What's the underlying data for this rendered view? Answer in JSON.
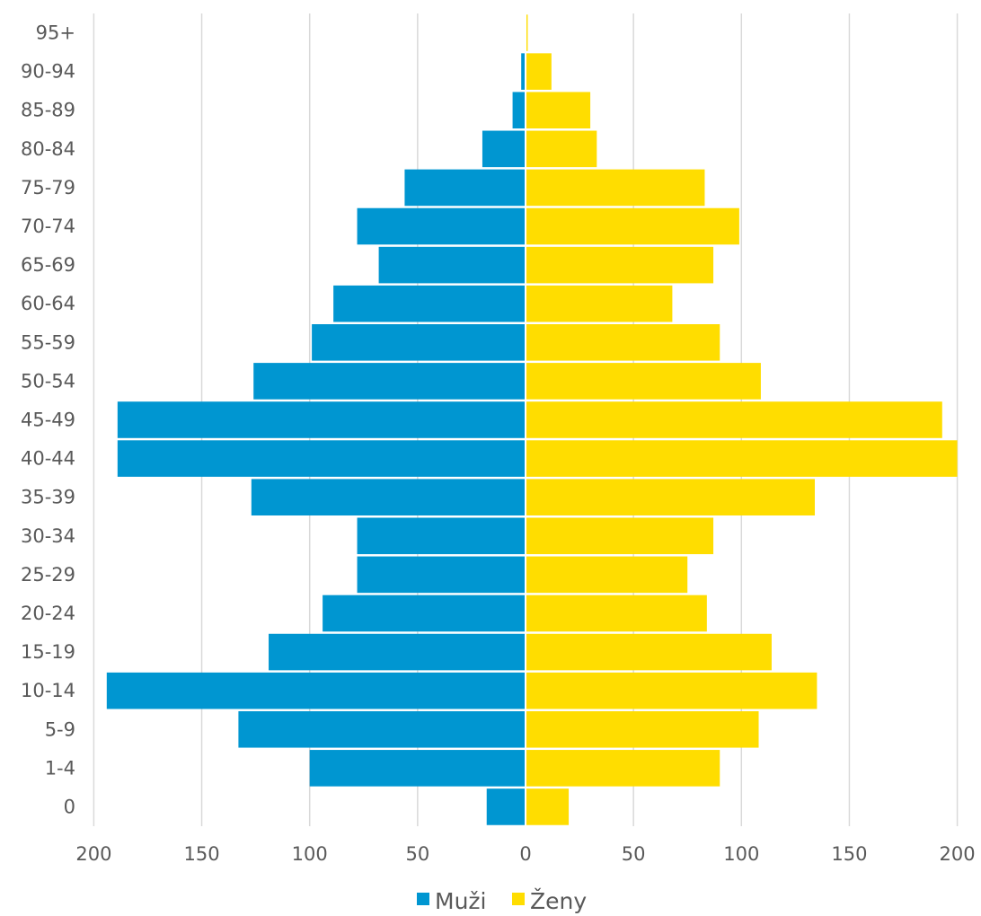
{
  "chart_data": {
    "type": "bar",
    "orientation": "horizontal-population-pyramid",
    "categories": [
      "95+",
      "90-94",
      "85-89",
      "80-84",
      "75-79",
      "70-74",
      "65-69",
      "60-64",
      "55-59",
      "50-54",
      "45-49",
      "40-44",
      "35-39",
      "30-34",
      "25-29",
      "20-24",
      "15-19",
      "10-14",
      "5-9",
      "1-4",
      "0"
    ],
    "series": [
      {
        "name": "Muži",
        "color": "#0096D1",
        "side": "left",
        "values": [
          0,
          2,
          6,
          20,
          56,
          78,
          68,
          89,
          99,
          126,
          189,
          189,
          127,
          78,
          78,
          94,
          119,
          194,
          133,
          100,
          18
        ]
      },
      {
        "name": "Ženy",
        "color": "#FFDD00",
        "side": "right",
        "values": [
          1,
          12,
          30,
          33,
          83,
          99,
          87,
          68,
          90,
          109,
          193,
          200,
          134,
          87,
          75,
          84,
          114,
          135,
          108,
          90,
          20
        ]
      }
    ],
    "x_axis": {
      "ticks": [
        -200,
        -150,
        -100,
        -50,
        0,
        50,
        100,
        150,
        200
      ],
      "tick_labels": [
        "200",
        "150",
        "100",
        "50",
        "0",
        "50",
        "100",
        "150",
        "200"
      ],
      "range": [
        -200,
        200
      ]
    },
    "grid": "vertical",
    "legend_position": "bottom-center",
    "title": "",
    "xlabel": "",
    "ylabel": ""
  }
}
